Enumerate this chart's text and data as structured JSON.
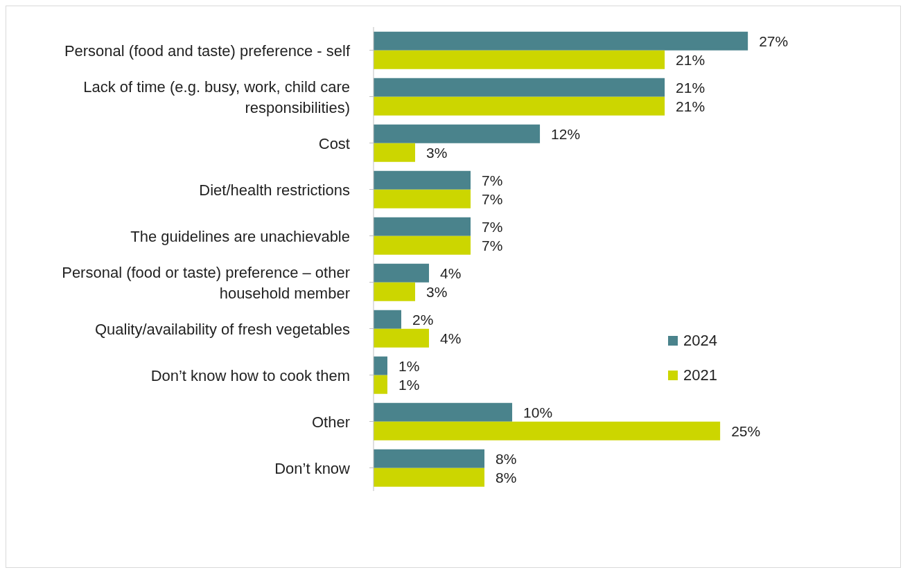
{
  "chart_data": {
    "type": "bar",
    "orientation": "horizontal",
    "categories": [
      "Personal (food and taste) preference - self",
      "Lack of time (e.g. busy, work, child care responsibilities)",
      "Cost",
      "Diet/health restrictions",
      "The guidelines are unachievable",
      "Personal (food or taste) preference – other household member",
      "Quality/availability of fresh vegetables",
      "Don’t know how to cook them",
      "Other",
      "Don’t know"
    ],
    "series": [
      {
        "name": "2024",
        "color": "#4a838c",
        "values": [
          27,
          21,
          12,
          7,
          7,
          4,
          2,
          1,
          10,
          8
        ],
        "value_labels": [
          "27%",
          "21%",
          "12%",
          "7%",
          "7%",
          "4%",
          "2%",
          "1%",
          "10%",
          "8%"
        ]
      },
      {
        "name": "2021",
        "color": "#ccd600",
        "values": [
          21,
          21,
          3,
          7,
          7,
          3,
          4,
          1,
          25,
          8
        ],
        "value_labels": [
          "21%",
          "21%",
          "3%",
          "7%",
          "7%",
          "3%",
          "4%",
          "1%",
          "25%",
          "8%"
        ]
      }
    ],
    "legend": "right",
    "grid": false
  }
}
